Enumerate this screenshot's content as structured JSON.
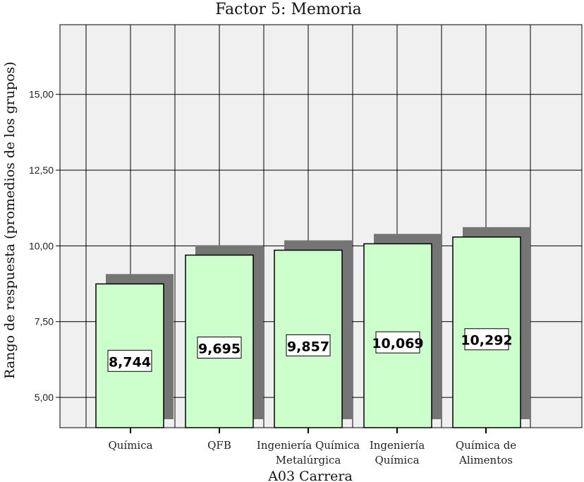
{
  "chart_data": {
    "type": "bar",
    "title": "Factor 5: Memoria",
    "xlabel": "A03 Carrera",
    "ylabel": "Rango de respuesta (promedios de los grupos)",
    "categories": [
      [
        "Química"
      ],
      [
        "QFB"
      ],
      [
        "Ingeniería Química",
        "Metalúrgica"
      ],
      [
        "Ingeniería",
        "Química"
      ],
      [
        "Química de",
        "Alimentos"
      ]
    ],
    "values": [
      8.744,
      9.695,
      9.857,
      10.069,
      10.292
    ],
    "data_labels": [
      "8,744",
      "9,695",
      "9,857",
      "10,069",
      "10,292"
    ],
    "yticks": [
      5.0,
      7.5,
      10.0,
      12.5,
      15.0
    ],
    "ytick_labels": [
      "5,00",
      "7,50",
      "10,00",
      "12,50",
      "15,00"
    ],
    "ylim": [
      4.0,
      17.3
    ],
    "grid": true,
    "legend": "none",
    "colors": {
      "bar_fill": "#ccffcc",
      "bar_stroke": "#000000",
      "shadow": "#757575",
      "plot_bg": "#f0f0f0",
      "grid": "#000000"
    }
  }
}
